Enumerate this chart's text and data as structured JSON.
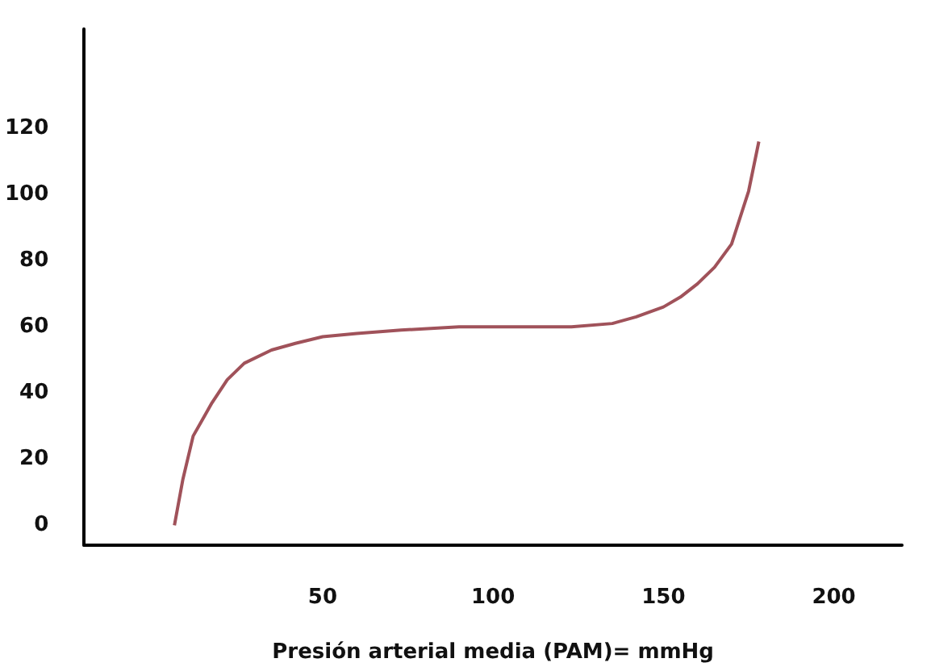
{
  "chart_data": {
    "type": "line",
    "xlabel": "Presión arterial media (PAM)= mmHg",
    "x": [
      6.5,
      9,
      12,
      17.5,
      22,
      27,
      35,
      42,
      50,
      60,
      73,
      90,
      105,
      123,
      135,
      142,
      150,
      155,
      160,
      165,
      170,
      175,
      178
    ],
    "series": [
      {
        "color": "#a0525a",
        "values": [
          0,
          14,
          27,
          37,
          44,
          49,
          53,
          55,
          57,
          58,
          59,
          60,
          60,
          60,
          61,
          63,
          66,
          69,
          73,
          78,
          85,
          101,
          116
        ]
      }
    ],
    "xlim": [
      -20,
      220
    ],
    "xticks": [
      50,
      100,
      150,
      200
    ],
    "ylim": [
      -6,
      150
    ],
    "yticks": [
      0,
      20,
      40,
      60,
      80,
      100,
      120
    ],
    "grid": false,
    "marker": "none",
    "line_style": "solid"
  }
}
